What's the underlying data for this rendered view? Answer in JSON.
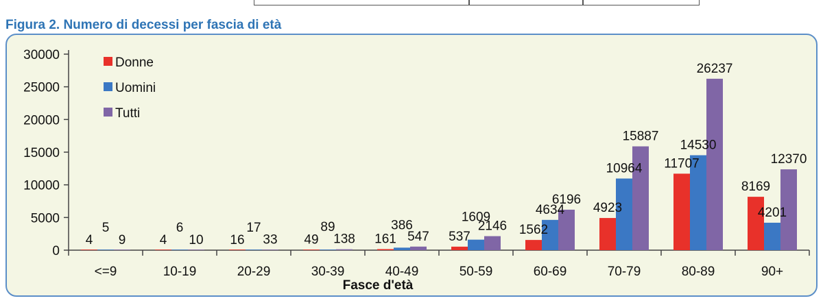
{
  "figure_title": "Figura 2. Numero di decessi per fascia di età",
  "colors": {
    "frame_border": "#5b8ec8",
    "plot_background": "#f4f6e4",
    "title": "#2e74b5"
  },
  "chart_data": {
    "type": "bar",
    "title": "",
    "xlabel": "Fasce d'età",
    "ylabel": "",
    "ylim": [
      0,
      30000
    ],
    "yticks": [
      0,
      5000,
      10000,
      15000,
      20000,
      25000,
      30000
    ],
    "grid": false,
    "legend_position": "top-left",
    "categories": [
      "<=9",
      "10-19",
      "20-29",
      "30-39",
      "40-49",
      "50-59",
      "60-69",
      "70-79",
      "80-89",
      "90+"
    ],
    "series": [
      {
        "name": "Donne",
        "color": "#e8312a",
        "values": [
          4,
          4,
          16,
          49,
          161,
          537,
          1562,
          4923,
          11707,
          8169
        ]
      },
      {
        "name": "Uomini",
        "color": "#3b78c4",
        "values": [
          5,
          6,
          17,
          89,
          386,
          1609,
          4634,
          10964,
          14530,
          4201
        ]
      },
      {
        "name": "Tutti",
        "color": "#8066a6",
        "values": [
          9,
          10,
          33,
          138,
          547,
          2146,
          6196,
          15887,
          26237,
          12370
        ]
      }
    ]
  }
}
